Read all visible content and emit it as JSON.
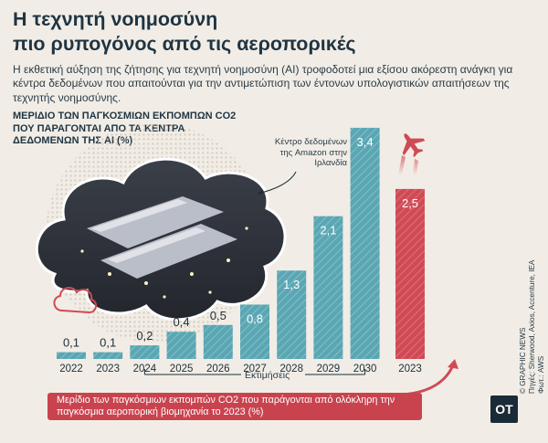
{
  "title_line1": "Η τεχνητή νοημοσύνη",
  "title_line2": "πιο ρυπογόνος από τις αεροπορικές",
  "subtitle": "Η εκθετική αύξηση της ζήτησης για τεχνητή νοημοσύνη (AI) τροφοδοτεί μια εξίσου ακόρεστη ανάγκη για κέντρα δεδομένων που απαιτούνται για την αντιμετώπιση των έντονων υπολογιστικών απαιτήσεων της τεχνητής νοημοσύνης.",
  "chart_data": {
    "type": "bar",
    "title": "ΜΕΡΙΔΙΟ ΤΩΝ ΠΑΓΚΟΣΜΙΩΝ ΕΚΠΟΜΠΩΝ CO2 ΠΟΥ ΠΑΡΑΓΟΝΤΑΙ ΑΠΟ ΤΑ ΚΕΝΤΡΑ ΔΕΔΟΜΕΝΩΝ ΤΗΣ AI (%)",
    "categories": [
      "2022",
      "2023",
      "2024",
      "2025",
      "2026",
      "2027",
      "2028",
      "2029",
      "2030"
    ],
    "values": [
      0.1,
      0.1,
      0.2,
      0.4,
      0.5,
      0.8,
      1.3,
      2.1,
      3.4
    ],
    "value_labels": [
      "0,1",
      "0,1",
      "0,2",
      "0,4",
      "0,5",
      "0,8",
      "1,3",
      "2,1",
      "3,4"
    ],
    "estimate_from": "2024",
    "estimate_label": "Εκτιμήσεις",
    "comparison": {
      "category": "2023",
      "value": 2.5,
      "value_label": "2,5"
    },
    "ylim": [
      0,
      3.6
    ],
    "colors": {
      "ai_bar": "#5aa6b3",
      "aviation_bar": "#cf4a55",
      "text": "#1c2e3a"
    }
  },
  "photo_caption": "Κέντρο δεδομένων της Amazon στην Ιρλανδία",
  "aviation_note": "Μερίδιο των παγκόσμιων εκπομπών CO2 που παράγονται από ολόκληρη την παγκόσμια αεροπορική βιομηχανία το 2023 (%)",
  "credit_line1": "© GRAPHIC NEWS",
  "credit_line2": "Πηγές: Sherwood, Axios, Accenture, IEA",
  "credit_line3": "Φωτ.: AWS",
  "logo": "OT",
  "icons": [
    "airplane-icon",
    "cloud-icon",
    "arrow-icon"
  ]
}
